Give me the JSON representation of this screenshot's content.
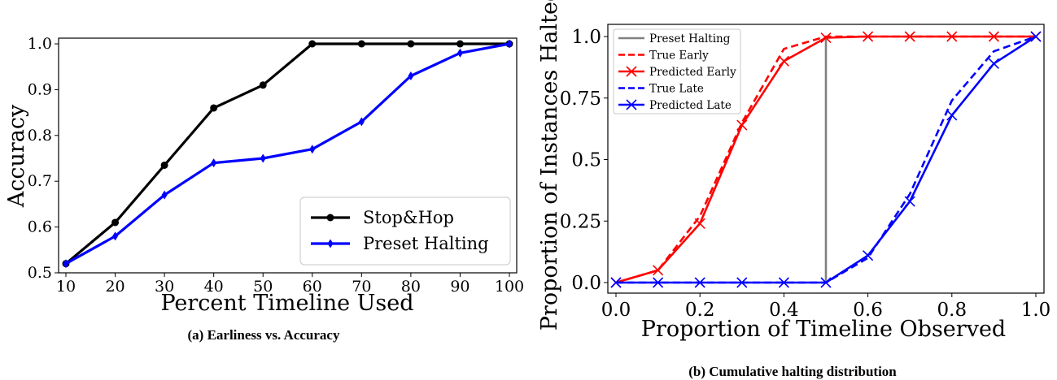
{
  "chart_data": [
    {
      "type": "line",
      "caption": "(a) Earliness vs. Accuracy",
      "xlabel": "Percent Timeline Used",
      "ylabel": "Accuracy",
      "x": [
        10,
        20,
        30,
        40,
        50,
        60,
        70,
        80,
        90,
        100
      ],
      "xticks": [
        "10",
        "20",
        "30",
        "40",
        "50",
        "60",
        "70",
        "80",
        "90",
        "100"
      ],
      "xlim": [
        10,
        100
      ],
      "ylim": [
        0.5,
        1.0
      ],
      "yticks": [
        "0.5",
        "0.6",
        "0.7",
        "0.8",
        "0.9",
        "1.0"
      ],
      "legend_position": "bottom-right",
      "grid": false,
      "series": [
        {
          "name": "Stop&Hop",
          "color": "#000000",
          "marker": "circle",
          "values": [
            0.52,
            0.61,
            0.735,
            0.86,
            0.91,
            1.0,
            1.0,
            1.0,
            1.0,
            1.0
          ]
        },
        {
          "name": "Preset Halting",
          "color": "#0000ff",
          "marker": "diamond",
          "values": [
            0.52,
            0.58,
            0.67,
            0.74,
            0.75,
            0.77,
            0.83,
            0.93,
            0.98,
            1.0
          ]
        }
      ]
    },
    {
      "type": "line",
      "caption": "(b) Cumulative halting distribution",
      "xlabel": "Proportion of Timeline Observed",
      "ylabel": "Proportion of Instances Halted",
      "x": [
        0.0,
        0.1,
        0.2,
        0.3,
        0.4,
        0.5,
        0.6,
        0.7,
        0.8,
        0.9,
        1.0
      ],
      "xticks": [
        "0.0",
        "0.2",
        "0.4",
        "0.6",
        "0.8",
        "1.0"
      ],
      "xlim": [
        0.0,
        1.0
      ],
      "ylim": [
        0.0,
        1.0
      ],
      "yticks": [
        "0.0",
        "0.25",
        "0.5",
        "0.75",
        "1.0"
      ],
      "legend_position": "top-left",
      "grid": false,
      "series": [
        {
          "name": "Preset Halting",
          "color": "#808080",
          "style": "solid",
          "points": [
            [
              0.5,
              0.0
            ],
            [
              0.5,
              1.0
            ]
          ]
        },
        {
          "name": "True Early",
          "color": "#ff0000",
          "style": "dashed",
          "values": [
            0.0,
            0.05,
            0.27,
            0.65,
            0.95,
            1.0,
            1.0,
            1.0,
            1.0,
            1.0,
            1.0
          ]
        },
        {
          "name": "Predicted Early",
          "color": "#ff0000",
          "style": "solid",
          "marker": "x",
          "values": [
            0.0,
            0.05,
            0.24,
            0.64,
            0.9,
            0.995,
            1.0,
            1.0,
            1.0,
            1.0,
            1.0
          ]
        },
        {
          "name": "True Late",
          "color": "#0000ff",
          "style": "dashed",
          "values": [
            0.0,
            0.0,
            0.0,
            0.0,
            0.0,
            0.0,
            0.1,
            0.36,
            0.74,
            0.94,
            1.0
          ]
        },
        {
          "name": "Predicted Late",
          "color": "#0000ff",
          "style": "solid",
          "marker": "x",
          "values": [
            0.0,
            0.0,
            0.0,
            0.0,
            0.0,
            0.0,
            0.11,
            0.33,
            0.68,
            0.89,
            1.0
          ]
        }
      ]
    }
  ]
}
